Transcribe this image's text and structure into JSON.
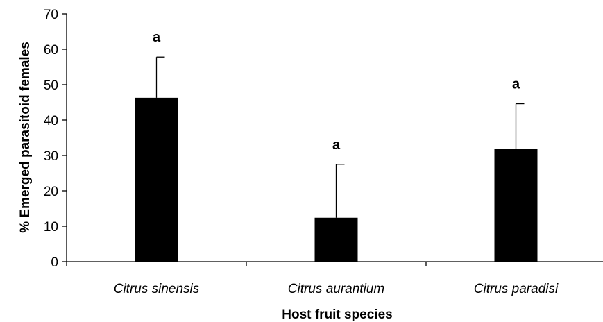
{
  "chart_data": {
    "type": "bar",
    "title": "",
    "xlabel": "Host fruit species",
    "ylabel": "% Emerged parasitoid females",
    "categories": [
      "Citrus sinensis",
      "Citrus aurantium",
      "Citrus paradisi"
    ],
    "values": [
      46.3,
      12.4,
      31.8
    ],
    "error_upper": [
      57.8,
      27.5,
      44.6
    ],
    "significance_letters": [
      "a",
      "a",
      "a"
    ],
    "ylim": [
      0,
      70
    ],
    "yticks": [
      0,
      10,
      20,
      30,
      40,
      50,
      60,
      70
    ],
    "grid": false,
    "bar_color": "#000000",
    "legend": "none"
  }
}
